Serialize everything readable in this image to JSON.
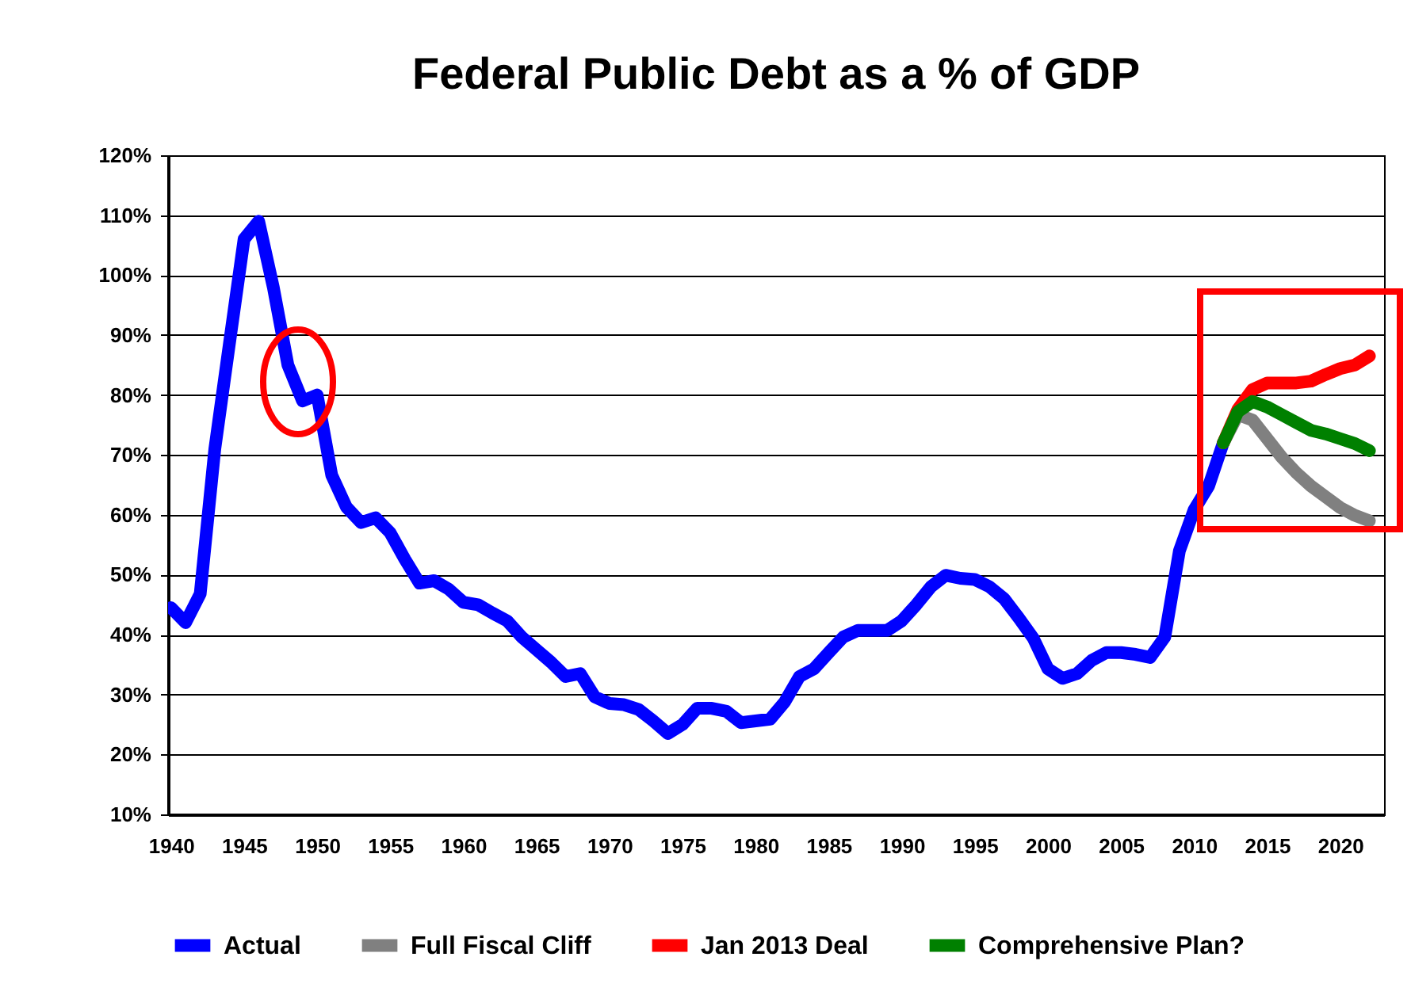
{
  "chart_data": {
    "type": "line",
    "title": "Federal Public Debt as a % of GDP",
    "xlim": [
      1939.8,
      2023
    ],
    "xticks": [
      1940,
      1945,
      1950,
      1955,
      1960,
      1965,
      1970,
      1975,
      1980,
      1985,
      1990,
      1995,
      2000,
      2005,
      2010,
      2015,
      2020
    ],
    "ylim": [
      10,
      120
    ],
    "yticks": [
      {
        "value": 10,
        "label": "10%"
      },
      {
        "value": 20,
        "label": "20%"
      },
      {
        "value": 30,
        "label": "30%"
      },
      {
        "value": 40,
        "label": "40%"
      },
      {
        "value": 50,
        "label": "50%"
      },
      {
        "value": 60,
        "label": "60%"
      },
      {
        "value": 70,
        "label": "70%"
      },
      {
        "value": 80,
        "label": "80%"
      },
      {
        "value": 90,
        "label": "90%"
      },
      {
        "value": 100,
        "label": "100%"
      },
      {
        "value": 110,
        "label": "110%"
      },
      {
        "value": 120,
        "label": "120%"
      }
    ],
    "grid": "y",
    "legend": "bottom",
    "line_style": "solid",
    "marker": "none",
    "series": [
      {
        "name": "Actual",
        "color": "#0000ff",
        "x": [
          1940,
          1941,
          1942,
          1943,
          1944,
          1945,
          1946,
          1947,
          1948,
          1949,
          1950,
          1951,
          1952,
          1953,
          1954,
          1955,
          1956,
          1957,
          1958,
          1959,
          1960,
          1961,
          1962,
          1963,
          1964,
          1965,
          1966,
          1967,
          1968,
          1969,
          1970,
          1971,
          1972,
          1973,
          1974,
          1975,
          1976,
          1977,
          1978,
          1979,
          1980,
          1981,
          1982,
          1983,
          1984,
          1985,
          1986,
          1987,
          1988,
          1989,
          1990,
          1991,
          1992,
          1993,
          1994,
          1995,
          1996,
          1997,
          1998,
          1999,
          2000,
          2001,
          2002,
          2003,
          2004,
          2005,
          2006,
          2007,
          2008,
          2009,
          2010,
          2011,
          2012
        ],
        "values": [
          44.5,
          42,
          46.8,
          71,
          88.6,
          106,
          109,
          98,
          85,
          79,
          80,
          66.6,
          61.3,
          58.7,
          59.5,
          57,
          52.6,
          48.6,
          49,
          47.6,
          45.4,
          45,
          43.6,
          42.3,
          39.6,
          37.5,
          35.4,
          33,
          33.5,
          29.6,
          28.5,
          28.3,
          27.5,
          25.6,
          23.5,
          25,
          27.7,
          27.7,
          27.2,
          25.3,
          25.6,
          25.9,
          28.8,
          33,
          34.3,
          37,
          39.6,
          40.7,
          40.7,
          40.7,
          42.3,
          45,
          48,
          49.9,
          49.4,
          49.2,
          48,
          46,
          42.8,
          39.4,
          34.3,
          32.7,
          33.5,
          35.7,
          37,
          37,
          36.7,
          36.2,
          39.6,
          54,
          60.8,
          64.8,
          72
        ]
      },
      {
        "name": "Full Fiscal Cliff",
        "color": "#808080",
        "x": [
          2012,
          2013,
          2014,
          2015,
          2016,
          2017,
          2018,
          2019,
          2020,
          2021,
          2022
        ],
        "values": [
          72,
          76.7,
          75.8,
          72.7,
          69.6,
          67,
          64.8,
          63,
          61.2,
          59.9,
          59
        ]
      },
      {
        "name": "Jan 2013 Deal",
        "color": "#ff0000",
        "x": [
          2012,
          2013,
          2014,
          2015,
          2016,
          2017,
          2018,
          2019,
          2020,
          2021,
          2022
        ],
        "values": [
          72,
          77.6,
          80.9,
          82,
          82,
          82,
          82.3,
          83.4,
          84.4,
          85,
          86.5
        ]
      },
      {
        "name": "Comprehensive Plan?",
        "color": "#008000",
        "x": [
          2012,
          2013,
          2014,
          2015,
          2016,
          2017,
          2018,
          2019,
          2020,
          2021,
          2022
        ],
        "values": [
          72,
          77.2,
          78.9,
          78,
          76.7,
          75.4,
          74.1,
          73.5,
          72.7,
          71.9,
          70.7
        ]
      }
    ]
  }
}
